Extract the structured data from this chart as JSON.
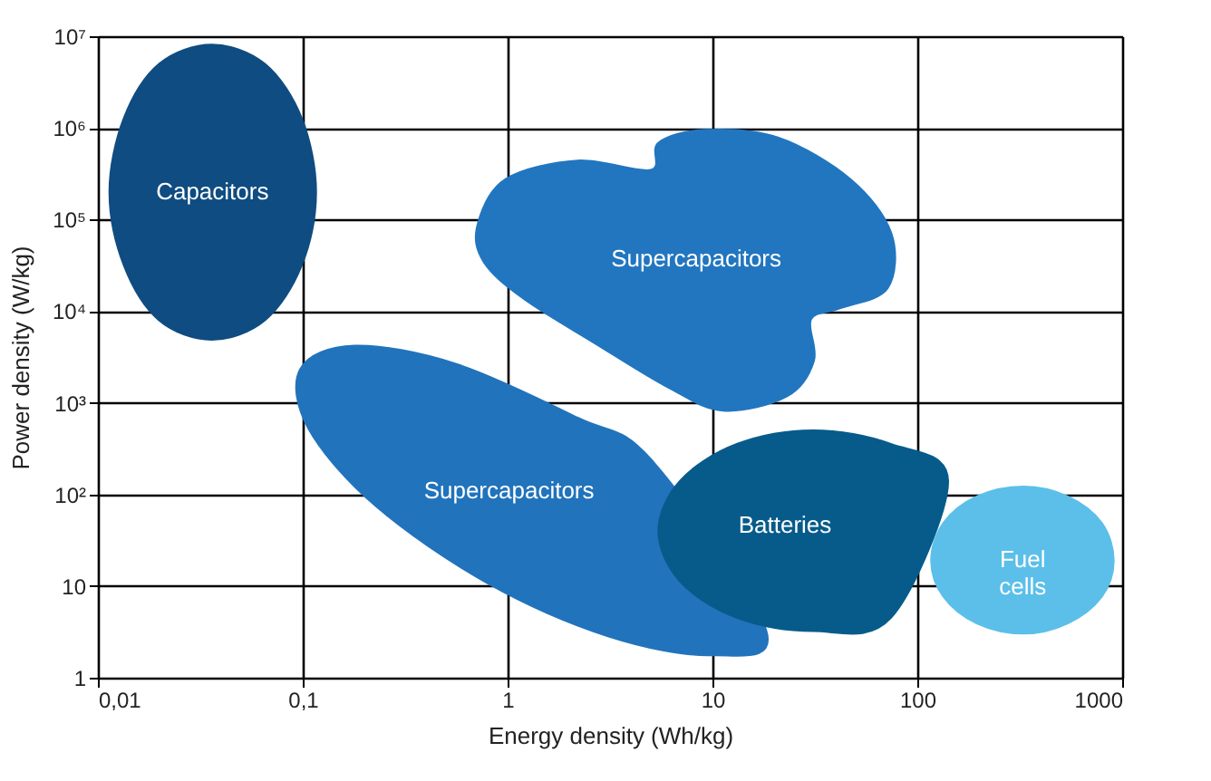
{
  "chart_data": {
    "type": "area",
    "xlabel": "Energy density (Wh/kg)",
    "ylabel": "Power density (W/kg)",
    "log": "xy",
    "grid": true,
    "xlim": [
      0.01,
      1000
    ],
    "ylim": [
      1,
      10000000
    ],
    "xticks": [
      {
        "value": 0.01,
        "label": "0,01"
      },
      {
        "value": 0.1,
        "label": "0,1"
      },
      1,
      10,
      100,
      1000
    ],
    "yticks": [
      1,
      10,
      {
        "value": 100,
        "label": "10²"
      },
      {
        "value": 1000,
        "label": "10³"
      },
      {
        "value": 10000,
        "label": "10⁴"
      },
      {
        "value": 100000,
        "label": "10⁵"
      },
      {
        "value": 1000000,
        "label": "10⁶"
      },
      {
        "value": 10000000,
        "label": "10⁷"
      }
    ],
    "series": [
      {
        "name": "Capacitors",
        "color": "#0f4c81",
        "x": [
          0.115,
          0.098,
          0.065,
          0.036,
          0.02,
          0.0135,
          0.0115,
          0.0135,
          0.02,
          0.036,
          0.065,
          0.098
        ],
        "values": [
          200000,
          1260000,
          4900000,
          7900000,
          4900000,
          1260000,
          200000,
          32000,
          8100,
          5000,
          8100,
          32000
        ]
      },
      {
        "name": "Supercapacitors",
        "color": "#2176bf",
        "x": [
          0.72,
          0.98,
          2.2,
          5.0,
          5.5,
          9.2,
          20.8,
          47,
          74,
          71,
          42,
          30,
          31,
          23,
          11.3,
          6.1,
          2.7,
          1.2,
          0.77
        ],
        "values": [
          87000,
          270000,
          430000,
          340000,
          680000,
          930000,
          770000,
          270000,
          70000,
          18000,
          11000,
          8200,
          2900,
          1200,
          840,
          1500,
          4500,
          14000,
          35000
        ]
      },
      {
        "name": "Supercapacitors",
        "color": "#2173bc",
        "x": [
          18.1,
          9.9,
          3.1,
          0.8,
          0.23,
          0.108,
          0.098,
          0.179,
          0.56,
          2.2,
          5.0
        ],
        "values": [
          3.3,
          1.8,
          2.9,
          11,
          75,
          520,
          2300,
          4100,
          2600,
          670,
          235
        ]
      },
      {
        "name": "Batteries",
        "color": "#065b8b",
        "x": [
          140,
          74,
          31,
          13.2,
          7.0,
          5.5,
          7.0,
          13.2,
          31,
          74
        ],
        "values": [
          139,
          348,
          490,
          348,
          139,
          40,
          11.4,
          4.6,
          3.3,
          4.6
        ]
      },
      {
        "name": "Fuel cells",
        "color": "#5bbfea",
        "x": [
          900,
          790,
          540,
          330,
          196,
          135,
          118,
          135,
          196,
          330,
          540,
          790
        ],
        "values": [
          19,
          48,
          93,
          119,
          93,
          48,
          19,
          7.8,
          4.0,
          3.1,
          4.0,
          7.8
        ]
      }
    ]
  }
}
